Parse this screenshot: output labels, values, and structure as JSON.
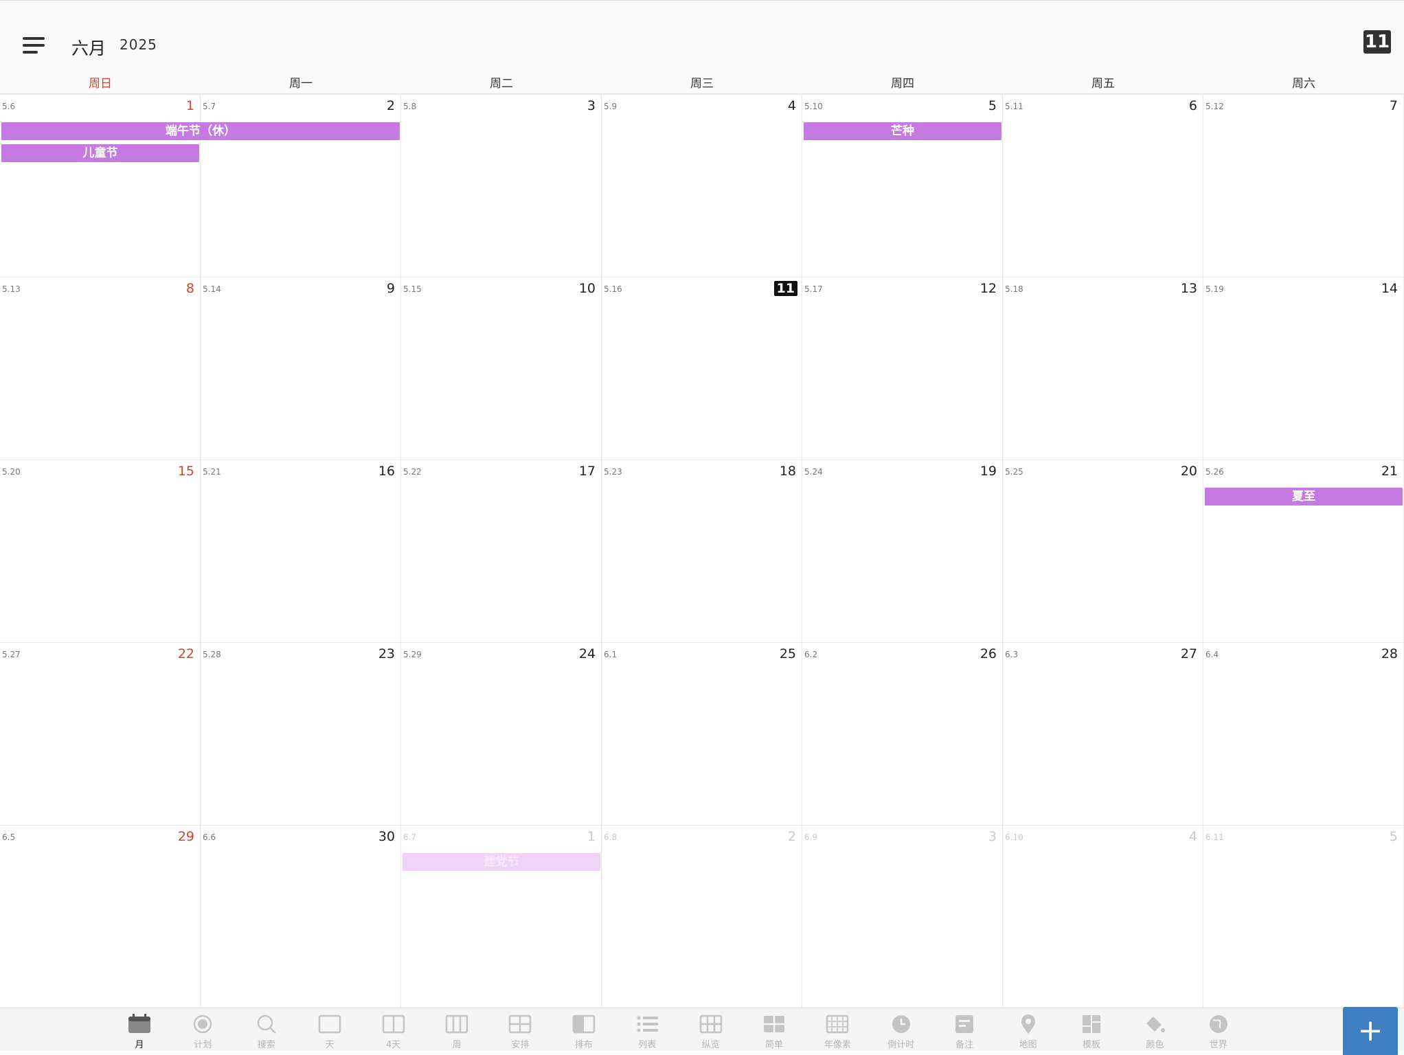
{
  "header": {
    "month": "六月",
    "year": "2025",
    "today_badge": "11"
  },
  "weekdays": [
    "周日",
    "周一",
    "周二",
    "周三",
    "周四",
    "周五",
    "周六"
  ],
  "weeks": [
    [
      {
        "lunar": "5.6",
        "day": "1"
      },
      {
        "lunar": "5.7",
        "day": "2"
      },
      {
        "lunar": "5.8",
        "day": "3"
      },
      {
        "lunar": "5.9",
        "day": "4"
      },
      {
        "lunar": "5.10",
        "day": "5"
      },
      {
        "lunar": "5.11",
        "day": "6"
      },
      {
        "lunar": "5.12",
        "day": "7"
      }
    ],
    [
      {
        "lunar": "5.13",
        "day": "8"
      },
      {
        "lunar": "5.14",
        "day": "9"
      },
      {
        "lunar": "5.15",
        "day": "10"
      },
      {
        "lunar": "5.16",
        "day": "11",
        "today": true
      },
      {
        "lunar": "5.17",
        "day": "12"
      },
      {
        "lunar": "5.18",
        "day": "13"
      },
      {
        "lunar": "5.19",
        "day": "14"
      }
    ],
    [
      {
        "lunar": "5.20",
        "day": "15"
      },
      {
        "lunar": "5.21",
        "day": "16"
      },
      {
        "lunar": "5.22",
        "day": "17"
      },
      {
        "lunar": "5.23",
        "day": "18"
      },
      {
        "lunar": "5.24",
        "day": "19"
      },
      {
        "lunar": "5.25",
        "day": "20"
      },
      {
        "lunar": "5.26",
        "day": "21"
      }
    ],
    [
      {
        "lunar": "5.27",
        "day": "22"
      },
      {
        "lunar": "5.28",
        "day": "23"
      },
      {
        "lunar": "5.29",
        "day": "24"
      },
      {
        "lunar": "6.1",
        "day": "25"
      },
      {
        "lunar": "6.2",
        "day": "26"
      },
      {
        "lunar": "6.3",
        "day": "27"
      },
      {
        "lunar": "6.4",
        "day": "28"
      }
    ],
    [
      {
        "lunar": "6.5",
        "day": "29"
      },
      {
        "lunar": "6.6",
        "day": "30"
      },
      {
        "lunar": "6.7",
        "day": "1",
        "other": true
      },
      {
        "lunar": "6.8",
        "day": "2",
        "other": true
      },
      {
        "lunar": "6.9",
        "day": "3",
        "other": true
      },
      {
        "lunar": "6.10",
        "day": "4",
        "other": true
      },
      {
        "lunar": "6.11",
        "day": "5",
        "other": true
      }
    ]
  ],
  "events": [
    {
      "label": "端午节（休）",
      "week": 0,
      "start": 0,
      "span": 2,
      "slot": 0
    },
    {
      "label": "儿童节",
      "week": 0,
      "start": 0,
      "span": 1,
      "slot": 1
    },
    {
      "label": "芒种",
      "week": 0,
      "start": 4,
      "span": 1,
      "slot": 0
    },
    {
      "label": "夏至",
      "week": 2,
      "start": 6,
      "span": 1,
      "slot": 0
    },
    {
      "label": "建党节",
      "week": 4,
      "start": 2,
      "span": 1,
      "slot": 0,
      "faded": true
    }
  ],
  "tabs": [
    {
      "label": "月",
      "icon": "calendar-icon",
      "active": true
    },
    {
      "label": "计划",
      "icon": "target-icon"
    },
    {
      "label": "搜索",
      "icon": "search-icon"
    },
    {
      "label": "天",
      "icon": "day-view-icon"
    },
    {
      "label": "4天",
      "icon": "four-day-view-icon"
    },
    {
      "label": "周",
      "icon": "week-view-icon"
    },
    {
      "label": "安排",
      "icon": "schedule-grid-icon"
    },
    {
      "label": "排布",
      "icon": "layout-icon"
    },
    {
      "label": "列表",
      "icon": "list-icon"
    },
    {
      "label": "纵览",
      "icon": "overview-grid-icon"
    },
    {
      "label": "简单",
      "icon": "simple-grid-icon"
    },
    {
      "label": "年像素",
      "icon": "year-pixels-icon"
    },
    {
      "label": "倒计时",
      "icon": "clock-icon"
    },
    {
      "label": "备注",
      "icon": "note-icon"
    },
    {
      "label": "地图",
      "icon": "map-pin-icon"
    },
    {
      "label": "模板",
      "icon": "template-icon"
    },
    {
      "label": "颜色",
      "icon": "paint-bucket-icon"
    },
    {
      "label": "世界",
      "icon": "globe-icon"
    }
  ],
  "fab_label": "+",
  "colors": {
    "event": "#c47ae0",
    "sunday": "#d0432f",
    "fab": "#3d7fc0"
  }
}
